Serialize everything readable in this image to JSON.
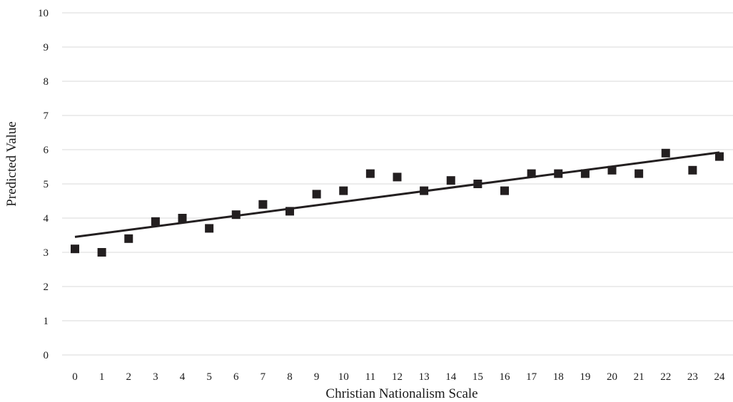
{
  "chart_data": {
    "type": "scatter",
    "title": "",
    "xlabel": "Christian Nationalism Scale",
    "ylabel": "Predicted Value",
    "xlim": [
      0,
      24
    ],
    "ylim": [
      0,
      10
    ],
    "y_ticks": [
      0,
      1,
      2,
      3,
      4,
      5,
      6,
      7,
      8,
      9,
      10
    ],
    "x_ticks": [
      0,
      1,
      2,
      3,
      4,
      5,
      6,
      7,
      8,
      9,
      10,
      11,
      12,
      13,
      14,
      15,
      16,
      17,
      18,
      19,
      20,
      21,
      22,
      23,
      24
    ],
    "grid": "horizontal",
    "legend": "none",
    "marker": "square",
    "marker_color": "#231f20",
    "gridline_color": "#d9d9d9",
    "series": [
      {
        "x": [
          0,
          1,
          2,
          3,
          4,
          5,
          6,
          7,
          8,
          9,
          10,
          11,
          12,
          13,
          14,
          15,
          16,
          17,
          18,
          19,
          20,
          21,
          22,
          23,
          24
        ],
        "y": [
          3.1,
          3.0,
          3.4,
          3.9,
          4.0,
          3.7,
          4.1,
          4.4,
          4.2,
          4.7,
          4.8,
          5.3,
          5.2,
          4.8,
          5.1,
          5.0,
          4.8,
          5.3,
          5.3,
          5.3,
          5.4,
          5.3,
          5.9,
          5.4,
          5.8
        ]
      }
    ],
    "trendline": {
      "type": "linear",
      "x": [
        0,
        24
      ],
      "y": [
        3.45,
        5.92
      ],
      "color": "#231f20"
    }
  }
}
